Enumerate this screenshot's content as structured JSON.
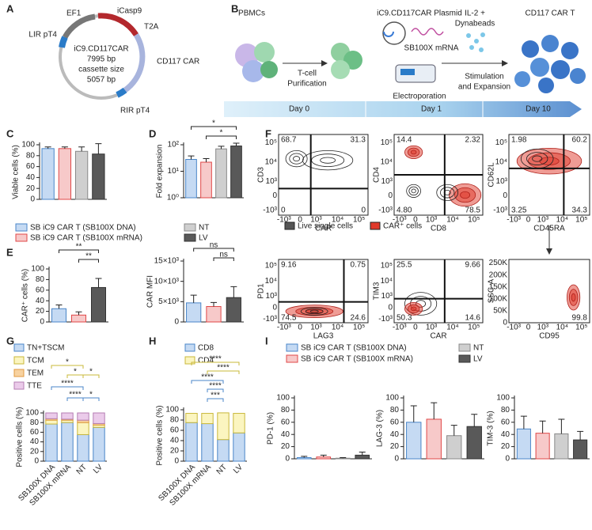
{
  "panel_labels": [
    "A",
    "B",
    "C",
    "D",
    "E",
    "F",
    "G",
    "H",
    "I"
  ],
  "plasmid": {
    "name": "iC9.CD117CAR",
    "size": "7995 bp",
    "cassette": "cassette size",
    "cassette_size": "5057 bp",
    "features": [
      "EF1",
      "iCasp9",
      "T2A",
      "CD117 CAR",
      "RIR pT4",
      "LIR pT4"
    ]
  },
  "workflow": {
    "texts": [
      "PBMCs",
      "T-cell",
      "Purification",
      "iC9.CD117CAR Plasmid",
      "SB100X mRNA",
      "Electroporation",
      "IL-2 +",
      "Dynabeads",
      "Stimulation",
      "and Expansion",
      "CD117 CAR T"
    ],
    "days": [
      "Day 0",
      "Day 1",
      "Day 10"
    ]
  },
  "legend": [
    {
      "name": "SB iC9 CAR T (SB100X DNA)",
      "color": "#c5daf3",
      "edge": "#4a86c8"
    },
    {
      "name": "SB iC9 CAR T (SB100X mRNA)",
      "color": "#f7c9c9",
      "edge": "#e04848"
    },
    {
      "name": "NT",
      "color": "#cfcfcf",
      "edge": "#888888"
    },
    {
      "name": "LV",
      "color": "#595959",
      "edge": "#333333"
    }
  ],
  "flow": {
    "ticks": [
      "-10³",
      "0",
      "10³",
      "10⁴",
      "10⁵"
    ],
    "ssc_ticks": [
      "0",
      "50K",
      "100K",
      "150K",
      "200K",
      "250K"
    ],
    "legend": [
      {
        "name": "Live single cells",
        "color": "#555555"
      },
      {
        "name": "CAR⁺ cells",
        "color": "#e0392b"
      }
    ],
    "plots": [
      {
        "y": "CD3",
        "x": "CAR",
        "quadrants": [
          "68.7",
          "31.3",
          "0",
          "0"
        ]
      },
      {
        "y": "CD4",
        "x": "CD8",
        "quadrants": [
          "14.4",
          "2.32",
          "4.80",
          "78.5"
        ]
      },
      {
        "y": "CD62L",
        "x": "CD45RA",
        "quadrants": [
          "1.98",
          "60.2",
          "3.25",
          "34.3"
        ]
      },
      {
        "y": "PD1",
        "x": "LAG3",
        "quadrants": [
          "9.16",
          "0.75",
          "74.5",
          "24.6"
        ]
      },
      {
        "y": "TIM3",
        "x": "CAR",
        "quadrants": [
          "25.5",
          "9.66",
          "50.3",
          "14.6"
        ]
      },
      {
        "y": "SSC-A",
        "x": "CD95",
        "quadrants": [
          "99.8"
        ]
      }
    ]
  },
  "chart_data": [
    {
      "type": "bar",
      "y_label": "Viable cells (%)",
      "values": [
        93,
        93,
        88,
        83
      ],
      "errors": [
        3,
        3,
        8,
        19
      ],
      "colors": [
        "#c5daf3",
        "#f7c9c9",
        "#cfcfcf",
        "#595959"
      ],
      "edge_colors": [
        "#4a86c8",
        "#e04848",
        "#888888",
        "#333333"
      ],
      "ylim": [
        0,
        100
      ],
      "yticks": [
        0,
        20,
        40,
        60,
        80,
        100
      ]
    },
    {
      "type": "bar",
      "log": true,
      "y_label": "Fold expansion",
      "values": [
        28,
        22,
        70,
        90
      ],
      "errors": [
        10,
        8,
        18,
        25
      ],
      "colors": [
        "#c5daf3",
        "#f7c9c9",
        "#cfcfcf",
        "#595959"
      ],
      "edge_colors": [
        "#4a86c8",
        "#e04848",
        "#888888",
        "#333333"
      ],
      "ylim": [
        1,
        100
      ],
      "yticks": [
        {
          "value": 1,
          "label": "10⁰"
        },
        {
          "value": 10,
          "label": "10¹"
        },
        {
          "value": 100,
          "label": "10²"
        }
      ],
      "annotations": [
        "*",
        "*"
      ]
    },
    {
      "type": "bar",
      "y_label": "CAR⁺ cells (%)",
      "values": [
        25,
        13,
        65
      ],
      "errors": [
        7,
        6,
        17
      ],
      "colors": [
        "#c5daf3",
        "#f7c9c9",
        "#595959"
      ],
      "edge_colors": [
        "#4a86c8",
        "#e04848",
        "#333333"
      ],
      "ylim": [
        0,
        100
      ],
      "yticks": [
        0,
        20,
        40,
        60,
        80,
        100
      ],
      "annotations": [
        "**",
        "**"
      ]
    },
    {
      "type": "bar",
      "y_label": "CAR MFI",
      "values": [
        4700,
        3800,
        6000
      ],
      "errors": [
        1900,
        1000,
        2700
      ],
      "colors": [
        "#c5daf3",
        "#f7c9c9",
        "#595959"
      ],
      "edge_colors": [
        "#4a86c8",
        "#e04848",
        "#333333"
      ],
      "ylim": [
        0,
        15000
      ],
      "yticks": [
        0,
        {
          "value": 5000,
          "label": "5×10³"
        },
        {
          "value": 10000,
          "label": "10×10³"
        },
        {
          "value": 15000,
          "label": "15×10³"
        }
      ],
      "annotations": [
        "ns",
        "ns"
      ]
    },
    {
      "type": "stacked_bar",
      "y_label": "Positive cells (%)",
      "categories": [
        "SB100X DNA",
        "SB100X mRNA",
        "NT",
        "LV"
      ],
      "series": [
        {
          "name": "TN+TSCM",
          "color": "#c5daf3",
          "edge": "#4a86c8",
          "values": [
            77,
            80,
            55,
            70
          ]
        },
        {
          "name": "TCM",
          "color": "#fbf5c0",
          "edge": "#c9b83a",
          "values": [
            8,
            5,
            25,
            5
          ]
        },
        {
          "name": "TEM",
          "color": "#f8d2a0",
          "edge": "#e09a40",
          "values": [
            3,
            2,
            5,
            3
          ]
        },
        {
          "name": "TTE",
          "color": "#ebcbea",
          "edge": "#b57db3",
          "values": [
            12,
            13,
            15,
            22
          ]
        }
      ],
      "ylim": [
        0,
        100
      ],
      "yticks": [
        0,
        20,
        40,
        60,
        80,
        100
      ],
      "annotations": [
        "*",
        "*",
        "*",
        "****",
        "****",
        "*"
      ]
    },
    {
      "type": "stacked_bar",
      "y_label": "Positive cells (%)",
      "categories": [
        "SB100X DNA",
        "SB100X mRNA",
        "NT",
        "LV"
      ],
      "series": [
        {
          "name": "CD8",
          "color": "#c5daf3",
          "edge": "#4a86c8",
          "values": [
            75,
            73,
            42,
            55
          ]
        },
        {
          "name": "CD4",
          "color": "#fbf5c0",
          "edge": "#c9b83a",
          "values": [
            18,
            20,
            52,
            38
          ]
        }
      ],
      "ylim": [
        0,
        100
      ],
      "yticks": [
        0,
        20,
        40,
        60,
        80,
        100
      ],
      "annotations": [
        "****",
        "****",
        "****",
        "****",
        "***"
      ]
    },
    {
      "type": "bar",
      "y_label": "PD-1 (%)",
      "values": [
        2,
        3,
        1,
        6
      ],
      "errors": [
        2,
        3,
        1,
        5
      ],
      "colors": [
        "#c5daf3",
        "#f7c9c9",
        "#cfcfcf",
        "#595959"
      ],
      "edge_colors": [
        "#4a86c8",
        "#e04848",
        "#888888",
        "#333333"
      ],
      "ylim": [
        0,
        100
      ],
      "yticks": [
        0,
        20,
        40,
        60,
        80,
        100
      ]
    },
    {
      "type": "bar",
      "y_label": "LAG-3 (%)",
      "values": [
        60,
        65,
        38,
        53
      ],
      "errors": [
        27,
        27,
        17,
        20
      ],
      "colors": [
        "#c5daf3",
        "#f7c9c9",
        "#cfcfcf",
        "#595959"
      ],
      "edge_colors": [
        "#4a86c8",
        "#e04848",
        "#888888",
        "#333333"
      ],
      "ylim": [
        0,
        100
      ],
      "yticks": [
        0,
        20,
        40,
        60,
        80,
        100
      ]
    },
    {
      "type": "bar",
      "y_label": "TIM-3 (%)",
      "values": [
        49,
        42,
        41,
        31
      ],
      "errors": [
        21,
        20,
        24,
        14
      ],
      "colors": [
        "#c5daf3",
        "#f7c9c9",
        "#cfcfcf",
        "#595959"
      ],
      "edge_colors": [
        "#4a86c8",
        "#e04848",
        "#888888",
        "#333333"
      ],
      "ylim": [
        0,
        100
      ],
      "yticks": [
        0,
        20,
        40,
        60,
        80,
        100
      ]
    }
  ]
}
